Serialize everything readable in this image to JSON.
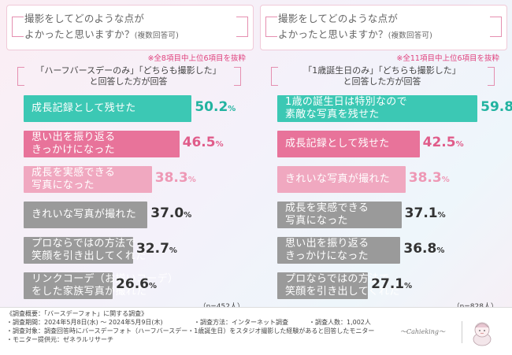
{
  "panels": [
    {
      "question_line1": "撮影をしてどのような点が",
      "question_line2": "よかったと思いますか？",
      "question_note": "(複数回答可)",
      "subnote": "※全8項目中上位6項目を抜粋",
      "condition_line1": "「ハーフバースデーのみ」「どちらも撮影した」",
      "condition_line2": "と回答した方が回答",
      "n_label": "（n=452人）"
    },
    {
      "question_line1": "撮影をしてどのような点が",
      "question_line2": "よかったと思いますか？",
      "question_note": "(複数回答可)",
      "subnote": "※全11項目中上位6項目を抜粋",
      "condition_line1": "「1歳誕生日のみ」「どちらも撮影した」",
      "condition_line2": "と回答した方が回答",
      "n_label": "（n=828人）"
    }
  ],
  "chart_data": [
    {
      "type": "bar",
      "orientation": "horizontal",
      "unit": "%",
      "xlim": [
        0,
        100
      ],
      "categories": [
        [
          "成長記録として残せた"
        ],
        [
          "思い出を振り返る",
          "きっかけになった"
        ],
        [
          "成長を実感できる",
          "写真になった"
        ],
        [
          "きれいな写真が撮れた"
        ],
        [
          "プロならではの方法で",
          "笑顔を引き出してくれた"
        ],
        [
          "リンクコーデ（お揃いコーデ）",
          "をした家族写真が撮れた"
        ]
      ],
      "values": [
        50.2,
        46.5,
        38.3,
        37.0,
        32.7,
        26.6
      ],
      "value_labels": [
        [
          "50.2",
          "%"
        ],
        [
          "46.5",
          "%"
        ],
        [
          "38.3",
          "%"
        ],
        [
          "37.0",
          "%"
        ],
        [
          "32.7",
          "%"
        ],
        [
          "26.6",
          "%"
        ]
      ],
      "colors": [
        "#3cc8b4",
        "#e8739a",
        "#f0a8c0",
        "#9a9a9a",
        "#9a9a9a",
        "#9a9a9a"
      ],
      "value_colors": [
        "#22b3a0",
        "#e05c8a",
        "#ee98b5",
        "#333333",
        "#333333",
        "#333333"
      ]
    },
    {
      "type": "bar",
      "orientation": "horizontal",
      "unit": "%",
      "xlim": [
        0,
        100
      ],
      "categories": [
        [
          "1歳の誕生日は特別なので",
          "素敵な写真を残せた"
        ],
        [
          "成長記録として残せた"
        ],
        [
          "きれいな写真が撮れた"
        ],
        [
          "成長を実感できる",
          "写真になった"
        ],
        [
          "思い出を振り返る",
          "きっかけになった"
        ],
        [
          "プロならではの方法で",
          "笑顔を引き出してくれた"
        ]
      ],
      "values": [
        59.8,
        42.5,
        38.3,
        37.1,
        36.8,
        27.1
      ],
      "value_labels": [
        [
          "59.8",
          "%"
        ],
        [
          "42.5",
          "%"
        ],
        [
          "38.3",
          "%"
        ],
        [
          "37.1",
          "%"
        ],
        [
          "36.8",
          "%"
        ],
        [
          "27.1",
          "%"
        ]
      ],
      "colors": [
        "#3cc8b4",
        "#e8739a",
        "#f0a8c0",
        "#9a9a9a",
        "#9a9a9a",
        "#9a9a9a"
      ],
      "value_colors": [
        "#22b3a0",
        "#e05c8a",
        "#ee98b5",
        "#333333",
        "#333333",
        "#333333"
      ]
    }
  ],
  "footer": {
    "line1": "《調査概要：「バースデーフォト」に関する調査》",
    "line2a": "・調査期間：2024年5月8日(水) ～ 2024年5月9日(木)",
    "line2b": "・調査方法：インターネット調査",
    "line2c": "・調査人数：1,002人",
    "line3": "・調査対象：調査回答時にバースデーフォト（ハーフバースデー・1歳誕生日）をスタジオ撮影した経験があると回答したモニター",
    "line4": "・モニター提供元：ゼネラルリサーチ",
    "logo_text": "～Cahieking～"
  }
}
